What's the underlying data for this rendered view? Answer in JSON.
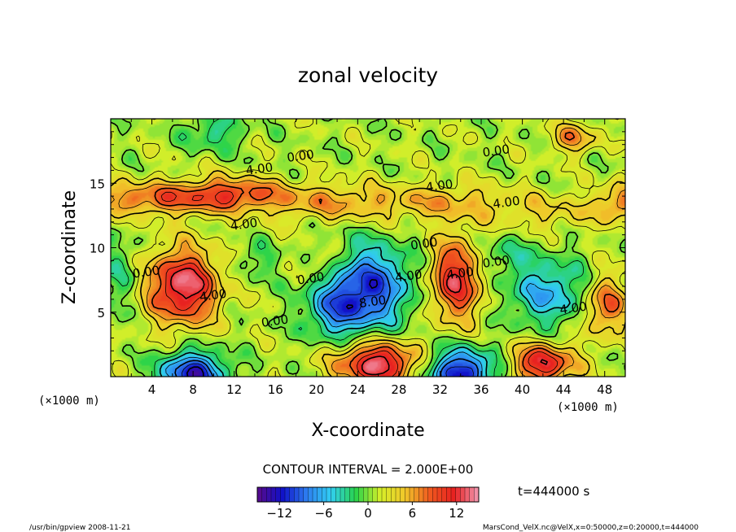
{
  "chart_data": {
    "type": "heatmap",
    "title": "zonal velocity",
    "xlabel": "X-coordinate",
    "ylabel": "Z-coordinate",
    "x_unit": "(×1000 m)",
    "xlim": [
      0,
      50
    ],
    "ylim": [
      0,
      20
    ],
    "x_ticks": [
      4,
      8,
      12,
      16,
      20,
      24,
      28,
      32,
      36,
      40,
      44,
      48
    ],
    "y_ticks": [
      5,
      10,
      15
    ],
    "contour_interval_label": "CONTOUR INTERVAL = 2.000E+00",
    "time_label": "t=444000 s",
    "colorbar": {
      "range": [
        -15,
        15
      ],
      "ticks": [
        -12,
        -6,
        0,
        6,
        12
      ],
      "tick_labels": [
        "−12",
        "−6",
        "0",
        "6",
        "12"
      ],
      "colors": [
        "#5a0a8a",
        "#1010c8",
        "#2d7cf0",
        "#31cff2",
        "#29d34a",
        "#d6ef29",
        "#f0c72a",
        "#f05a1f",
        "#e82020",
        "#f29ab4"
      ]
    },
    "background_value": 1,
    "features": [
      {
        "x": 7,
        "z": 7,
        "amp": 13,
        "sx": 2.4,
        "sz": 2.0
      },
      {
        "x": 33.5,
        "z": 7.5,
        "amp": 11,
        "sx": 1.8,
        "sz": 2.2
      },
      {
        "x": 25,
        "z": 7,
        "amp": -11,
        "sx": 3.0,
        "sz": 2.2
      },
      {
        "x": 22,
        "z": 5,
        "amp": -6,
        "sx": 2.2,
        "sz": 1.5
      },
      {
        "x": 42.5,
        "z": 6.5,
        "amp": -7,
        "sx": 2.8,
        "sz": 1.8
      },
      {
        "x": 1,
        "z": 8,
        "amp": -3,
        "sx": 1.5,
        "sz": 2.0
      },
      {
        "x": 26,
        "z": 1,
        "amp": 13,
        "sx": 2.8,
        "sz": 1.2
      },
      {
        "x": 8,
        "z": 0.2,
        "amp": -13,
        "sx": 2.2,
        "sz": 1.2
      },
      {
        "x": 34,
        "z": 0.3,
        "amp": -13,
        "sx": 2.4,
        "sz": 1.3
      },
      {
        "x": 42,
        "z": 1,
        "amp": 11,
        "sx": 2.2,
        "sz": 1.1
      },
      {
        "x": 48,
        "z": 5.5,
        "amp": 8,
        "sx": 1.5,
        "sz": 1.6
      },
      {
        "x": 4,
        "z": 13.8,
        "amp": 7,
        "sx": 5.0,
        "sz": 0.9
      },
      {
        "x": 12,
        "z": 14.2,
        "amp": 7,
        "sx": 3.5,
        "sz": 0.9
      },
      {
        "x": 22,
        "z": 13.5,
        "amp": 5,
        "sx": 5.0,
        "sz": 1.0
      },
      {
        "x": 33,
        "z": 13.5,
        "amp": 4,
        "sx": 4.0,
        "sz": 1.0
      },
      {
        "x": 43,
        "z": 12.8,
        "amp": 3,
        "sx": 4.0,
        "sz": 1.0
      },
      {
        "x": 49.5,
        "z": 13.5,
        "amp": 6,
        "sx": 1.5,
        "sz": 1.0
      },
      {
        "x": 10,
        "z": 19,
        "amp": -4,
        "sx": 2.0,
        "sz": 1.0
      },
      {
        "x": 45,
        "z": 18.5,
        "amp": 6,
        "sx": 1.5,
        "sz": 0.8
      },
      {
        "x": 21,
        "z": 8.8,
        "amp": 4,
        "sx": 1.3,
        "sz": 0.9
      },
      {
        "x": 14,
        "z": 9,
        "amp": -2.5,
        "sx": 1.5,
        "sz": 1.0
      },
      {
        "x": 38,
        "z": 9.5,
        "amp": -3,
        "sx": 2.0,
        "sz": 1.0
      }
    ],
    "contour_labels": [
      {
        "x": 18.5,
        "z": 16.8,
        "text": "0.00"
      },
      {
        "x": 37.5,
        "z": 17.2,
        "text": "0.00"
      },
      {
        "x": 14.5,
        "z": 15.8,
        "text": "4.00"
      },
      {
        "x": 32,
        "z": 14.5,
        "text": "4.00"
      },
      {
        "x": 38.5,
        "z": 13.2,
        "text": "4.00"
      },
      {
        "x": 13,
        "z": 11.5,
        "text": "4.00"
      },
      {
        "x": 30.5,
        "z": 10,
        "text": "0.00"
      },
      {
        "x": 3.5,
        "z": 7.8,
        "text": "0.00"
      },
      {
        "x": 19.5,
        "z": 7.3,
        "text": "0.00"
      },
      {
        "x": 16,
        "z": 4,
        "text": "0.00"
      },
      {
        "x": 10,
        "z": 6,
        "text": "4.00"
      },
      {
        "x": 34,
        "z": 7.7,
        "text": "4.00"
      },
      {
        "x": 37.5,
        "z": 8.6,
        "text": "0.00"
      },
      {
        "x": 25.5,
        "z": 5.5,
        "text": "8.00"
      },
      {
        "x": 29,
        "z": 7.5,
        "text": "4.00"
      },
      {
        "x": 45,
        "z": 5,
        "text": "4.00"
      }
    ]
  },
  "footer": {
    "left": "/usr/bin/gpview  2008-11-21",
    "right": "MarsCond_VelX.nc@VelX,x=0:50000,z=0:20000,t=444000"
  }
}
